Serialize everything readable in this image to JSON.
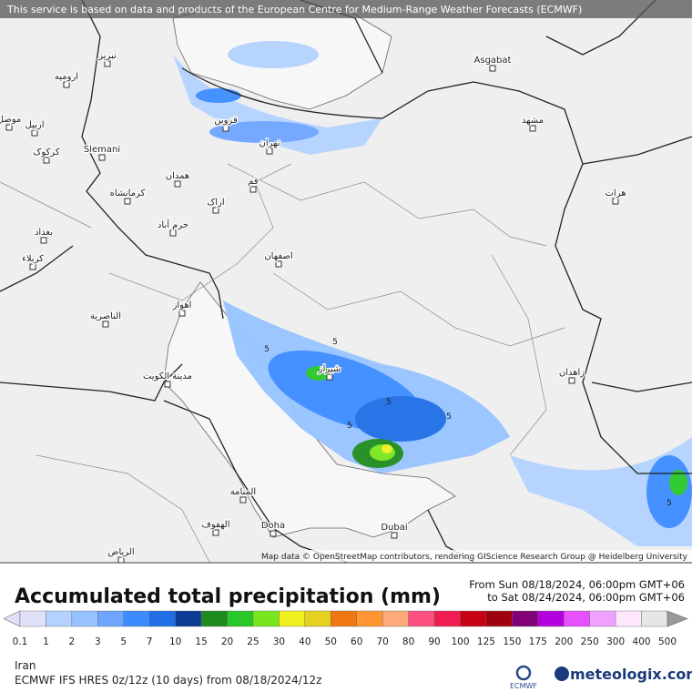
{
  "header": {
    "notice": "This service is based on data and products of the European Centre for Medium-Range Weather Forecasts (ECMWF)"
  },
  "map": {
    "cities": [
      "Asgabat",
      "مشهد",
      "تبریز",
      "ارومیه",
      "موصل",
      "اربیل",
      "کرکوک",
      "Slemani",
      "قزوین",
      "تهران",
      "همدان",
      "کرمانشاه",
      "قم",
      "اراک",
      "خرم آباد",
      "بغداد",
      "کربلاء",
      "اصفهان",
      "اهواز",
      "الناصرية",
      "شیراز",
      "مدينة الكويت",
      "زاهدان",
      "هرات",
      "المنامة",
      "الهفوف",
      "Doha",
      "Dubai",
      "الرياض"
    ],
    "contour_labels": [
      5,
      5,
      5,
      5,
      5,
      5
    ],
    "attribution": "Map data © OpenStreetMap contributors, rendering GIScience Research Group @ Heidelberg University"
  },
  "legend": {
    "title": "Accumulated total precipitation (mm)",
    "from": "From Sun 08/18/2024, 06:00pm GMT+06",
    "to": "to Sat 08/24/2024, 06:00pm GMT+06",
    "levels": [
      0.1,
      1,
      2,
      3,
      5,
      7,
      10,
      15,
      20,
      25,
      30,
      40,
      50,
      60,
      70,
      80,
      90,
      100,
      125,
      150,
      175,
      200,
      250,
      300,
      400,
      500
    ],
    "colors": [
      "#e0e0f8",
      "#b4d2ff",
      "#96c3ff",
      "#6ea5ff",
      "#3c8cff",
      "#1e6ee6",
      "#0c3c96",
      "#1e8c1e",
      "#28c828",
      "#78e61e",
      "#f0f01e",
      "#e6d21e",
      "#f07814",
      "#ff9632",
      "#ffaa78",
      "#ff5082",
      "#f01e50",
      "#c80014",
      "#a0000f",
      "#820078",
      "#b400dc",
      "#e650ff",
      "#f0a0ff",
      "#ffe6ff",
      "#e6e6e6"
    ]
  },
  "footer": {
    "region": "Iran",
    "model": "ECMWF IFS HRES 0z/12z (10 days) from  08/18/2024/12z",
    "ecmwf": "ECMWF",
    "brand": "meteologix.com"
  }
}
